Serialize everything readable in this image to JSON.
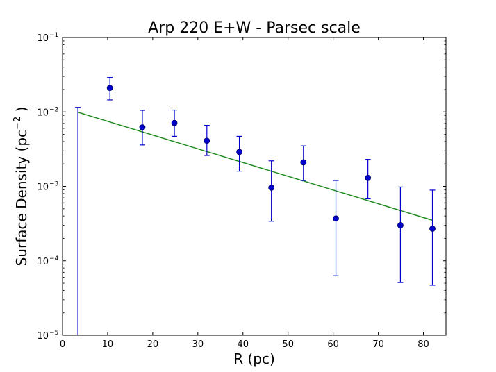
{
  "chart_data": {
    "type": "scatter",
    "title": "Arp 220 E+W - Parsec scale",
    "xlabel": "R (pc)",
    "ylabel_main": "Surface Density (pc",
    "ylabel_sup": "−2",
    "ylabel_end": " )",
    "xlim": [
      0,
      85
    ],
    "ylim": [
      1e-05,
      0.1
    ],
    "yscale": "log",
    "grid": false,
    "x_ticks": [
      0,
      10,
      20,
      30,
      40,
      50,
      60,
      70,
      80
    ],
    "y_ticks": [
      {
        "value": 1e-05,
        "base": "10",
        "exp": "-5"
      },
      {
        "value": 0.0001,
        "base": "10",
        "exp": "-4"
      },
      {
        "value": 0.001,
        "base": "10",
        "exp": "-3"
      },
      {
        "value": 0.01,
        "base": "10",
        "exp": "-2"
      },
      {
        "value": 0.1,
        "base": "10",
        "exp": "-1"
      }
    ],
    "series": [
      {
        "type": "errorbar",
        "color": "#0000cc",
        "points": [
          {
            "x": 3.4,
            "y": null,
            "ylo": 1e-05,
            "yhi": 0.0115
          },
          {
            "x": 10.5,
            "y": 0.021,
            "ylo": 0.0145,
            "yhi": 0.029
          },
          {
            "x": 17.7,
            "y": 0.0062,
            "ylo": 0.0036,
            "yhi": 0.0105
          },
          {
            "x": 24.8,
            "y": 0.0071,
            "ylo": 0.0047,
            "yhi": 0.0106
          },
          {
            "x": 32.0,
            "y": 0.0041,
            "ylo": 0.0026,
            "yhi": 0.0066
          },
          {
            "x": 39.2,
            "y": 0.0029,
            "ylo": 0.0016,
            "yhi": 0.0047
          },
          {
            "x": 46.3,
            "y": 0.00096,
            "ylo": 0.00034,
            "yhi": 0.0022
          },
          {
            "x": 53.4,
            "y": 0.0021,
            "ylo": 0.0012,
            "yhi": 0.0035
          },
          {
            "x": 60.6,
            "y": 0.00037,
            "ylo": 6.3e-05,
            "yhi": 0.0012
          },
          {
            "x": 67.7,
            "y": 0.0013,
            "ylo": 0.00068,
            "yhi": 0.0023
          },
          {
            "x": 74.9,
            "y": 0.0003,
            "ylo": 5.1e-05,
            "yhi": 0.00098
          },
          {
            "x": 82.0,
            "y": 0.00027,
            "ylo": 4.7e-05,
            "yhi": 0.00089
          }
        ]
      },
      {
        "type": "line",
        "color": "#228b22",
        "x": [
          3.4,
          82.0
        ],
        "y": [
          0.0099,
          0.00035
        ]
      }
    ]
  }
}
